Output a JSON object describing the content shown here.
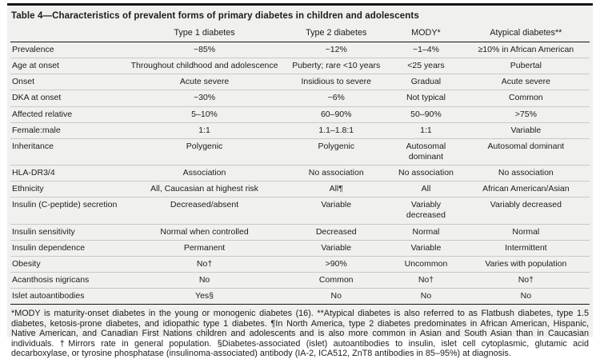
{
  "table": {
    "title": "Table 4—Characteristics of prevalent forms of primary diabetes in children and adolescents",
    "columns": [
      "",
      "Type 1 diabetes",
      "Type 2 diabetes",
      "MODY*",
      "Atypical diabetes**"
    ],
    "rows": [
      {
        "label": "Prevalence",
        "values": [
          "~85%",
          "~12%",
          "~1–4%",
          "≥10% in African American"
        ]
      },
      {
        "label": "Age at onset",
        "values": [
          "Throughout childhood and adolescence",
          "Puberty; rare <10 years",
          "<25 years",
          "Pubertal"
        ]
      },
      {
        "label": "Onset",
        "values": [
          "Acute severe",
          "Insidious to severe",
          "Gradual",
          "Acute severe"
        ]
      },
      {
        "label": "DKA at onset",
        "values": [
          "~30%",
          "~6%",
          "Not typical",
          "Common"
        ]
      },
      {
        "label": "Affected relative",
        "values": [
          "5–10%",
          "60–90%",
          "50–90%",
          ">75%"
        ]
      },
      {
        "label": "Female:male",
        "values": [
          "1:1",
          "1.1–1.8:1",
          "1:1",
          "Variable"
        ]
      },
      {
        "label": "Inheritance",
        "values": [
          "Polygenic",
          "Polygenic",
          "Autosomal dominant",
          "Autosomal dominant"
        ]
      },
      {
        "label": "HLA-DR3/4",
        "values": [
          "Association",
          "No association",
          "No association",
          "No association"
        ]
      },
      {
        "label": "Ethnicity",
        "values": [
          "All, Caucasian at highest risk",
          "All¶",
          "All",
          "African American/Asian"
        ]
      },
      {
        "label": "Insulin (C-peptide) secretion",
        "values": [
          "Decreased/absent",
          "Variable",
          "Variably decreased",
          "Variably decreased"
        ]
      },
      {
        "label": "Insulin sensitivity",
        "values": [
          "Normal when controlled",
          "Decreased",
          "Normal",
          "Normal"
        ]
      },
      {
        "label": "Insulin dependence",
        "values": [
          "Permanent",
          "Variable",
          "Variable",
          "Intermittent"
        ]
      },
      {
        "label": "Obesity",
        "values": [
          "No†",
          ">90%",
          "Uncommon",
          "Varies with population"
        ]
      },
      {
        "label": "Acanthosis nigricans",
        "values": [
          "No",
          "Common",
          "No†",
          "No†"
        ]
      },
      {
        "label": "Islet autoantibodies",
        "values": [
          "Yes§",
          "No",
          "No",
          "No"
        ]
      }
    ],
    "footnote": "*MODY is maturity-onset diabetes in the young or monogenic diabetes (16). **Atypical diabetes is also referred to as Flatbush diabetes, type 1.5 diabetes, ketosis-prone diabetes, and idiopathic type 1 diabetes. ¶In North America, type 2 diabetes predominates in African American, Hispanic, Native American, and Canadian First Nations children and adolescents and is also more common in Asian and South Asian than in Caucasian individuals. †Mirrors rate in general population. §Diabetes-associated (islet) autoantibodies to insulin, islet cell cytoplasmic, glutamic acid decarboxylase, or tyrosine phosphatase (insulinoma-associated) antibody (IA-2, ICA512, ZnT8 antibodies in 85–95%) at diagnosis."
  },
  "colors": {
    "card_background": "#f0f0ee",
    "rule_black": "#161616",
    "row_divider": "#c9c9c7",
    "text": "#1c1c1c"
  }
}
